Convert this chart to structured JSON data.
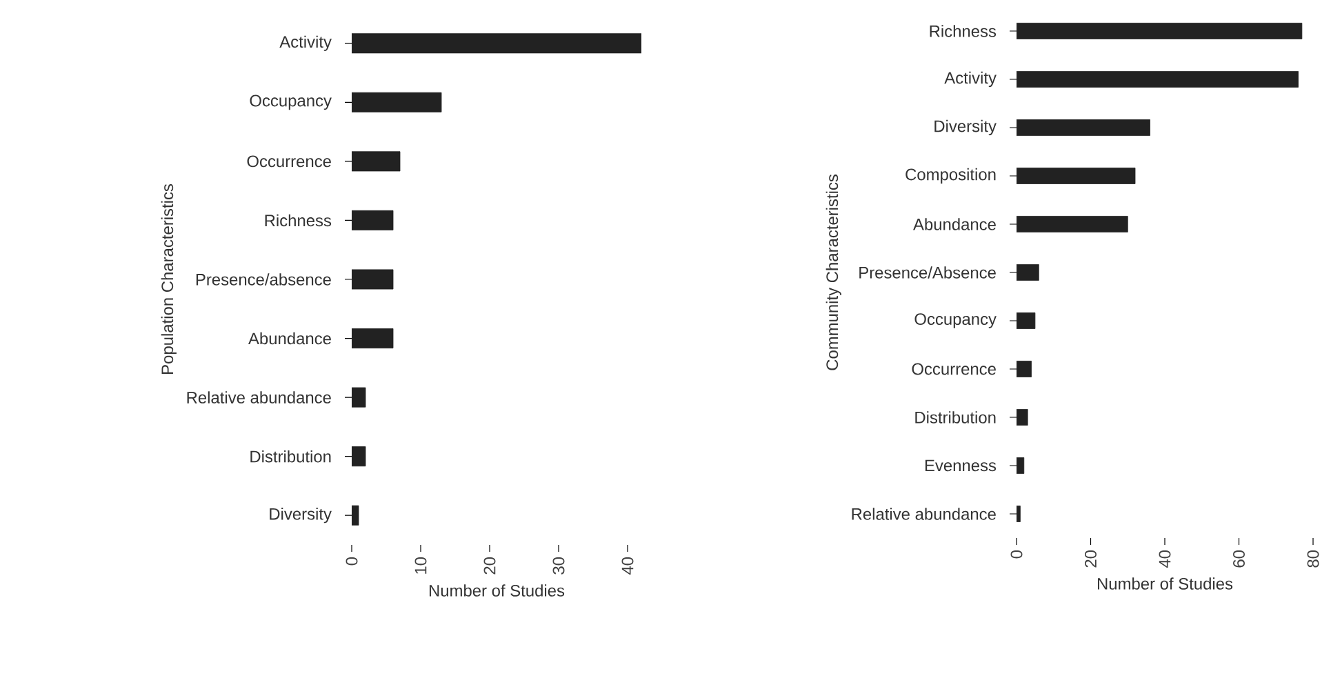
{
  "chart_data": [
    {
      "type": "bar",
      "orientation": "horizontal",
      "xlabel": "Number of Studies",
      "ylabel": "Population Characteristics",
      "categories": [
        "Activity",
        "Occupancy",
        "Occurrence",
        "Richness",
        "Presence/absence",
        "Abundance",
        "Relative abundance",
        "Distribution",
        "Diversity"
      ],
      "values": [
        42,
        13,
        7,
        6,
        6,
        6,
        2,
        2,
        1
      ],
      "color": "#222222",
      "xlim": [
        0,
        42
      ],
      "xticks": [
        0,
        10,
        20,
        30,
        40
      ]
    },
    {
      "type": "bar",
      "orientation": "horizontal",
      "xlabel": "Number of Studies",
      "ylabel": "Community Characteristics",
      "categories": [
        "Richness",
        "Activity",
        "Diversity",
        "Composition",
        "Abundance",
        "Presence/Absence",
        "Occupancy",
        "Occurrence",
        "Distribution",
        "Evenness",
        "Relative abundance"
      ],
      "values": [
        77,
        76,
        36,
        32,
        30,
        6,
        5,
        4,
        3,
        2,
        1
      ],
      "color": "#222222",
      "xlim": [
        0,
        80
      ],
      "xticks": [
        0,
        20,
        40,
        60,
        80
      ]
    }
  ]
}
